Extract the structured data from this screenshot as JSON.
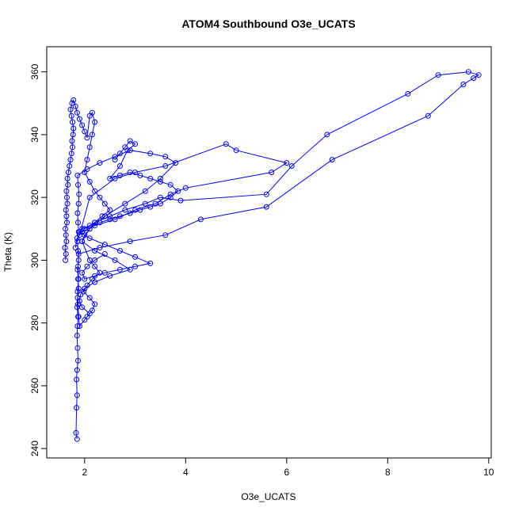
{
  "chart_data": {
    "type": "scatter",
    "title": "ATOM4 Southbound O3e_UCATS",
    "xlabel": "O3e_UCATS",
    "ylabel": "Theta (K)",
    "xlim": [
      1.25,
      10.05
    ],
    "ylim": [
      237,
      368
    ],
    "xticks": [
      2,
      4,
      6,
      8,
      10
    ],
    "yticks": [
      240,
      260,
      280,
      300,
      320,
      340,
      360
    ],
    "grid": false,
    "legend": "none",
    "color": "#0000ff",
    "marker": "open-circle",
    "connected": true,
    "series": [
      {
        "values": [
          [
            1.85,
            243
          ],
          [
            1.83,
            245
          ],
          [
            1.84,
            253
          ],
          [
            1.85,
            257
          ],
          [
            1.84,
            262
          ],
          [
            1.85,
            265
          ],
          [
            1.87,
            268
          ],
          [
            1.86,
            272
          ],
          [
            1.85,
            276
          ],
          [
            1.86,
            279
          ],
          [
            1.87,
            282
          ],
          [
            1.85,
            285
          ],
          [
            1.86,
            288
          ],
          [
            1.88,
            291
          ],
          [
            1.87,
            294
          ],
          [
            1.86,
            297
          ],
          [
            1.88,
            300
          ],
          [
            1.87,
            303
          ],
          [
            1.86,
            306
          ],
          [
            1.88,
            309
          ],
          [
            1.87,
            312
          ],
          [
            1.86,
            315
          ],
          [
            1.88,
            318
          ],
          [
            1.89,
            321
          ],
          [
            1.87,
            324
          ],
          [
            1.86,
            327
          ],
          [
            2.05,
            329
          ],
          [
            2.3,
            331
          ],
          [
            2.6,
            333
          ],
          [
            2.9,
            335
          ],
          [
            3.3,
            334
          ],
          [
            3.6,
            333
          ],
          [
            3.8,
            331
          ],
          [
            3.5,
            326
          ],
          [
            3.2,
            322
          ],
          [
            2.8,
            318
          ],
          [
            2.4,
            314
          ],
          [
            2.1,
            310
          ],
          [
            1.95,
            306
          ],
          [
            2.2,
            303
          ],
          [
            2.6,
            300
          ],
          [
            2.9,
            297
          ],
          [
            2.5,
            295
          ],
          [
            2.2,
            293
          ],
          [
            2.0,
            291
          ],
          [
            1.92,
            289
          ],
          [
            1.9,
            287
          ],
          [
            1.95,
            285
          ],
          [
            2.1,
            283
          ],
          [
            2.0,
            281
          ],
          [
            1.9,
            279
          ],
          [
            1.88,
            282
          ],
          [
            1.87,
            286
          ],
          [
            1.86,
            290
          ],
          [
            1.88,
            294
          ],
          [
            1.87,
            298
          ],
          [
            1.88,
            302
          ],
          [
            2.3,
            304
          ],
          [
            2.9,
            306
          ],
          [
            3.6,
            308
          ],
          [
            4.3,
            313
          ],
          [
            5.6,
            317
          ],
          [
            6.9,
            332
          ],
          [
            8.8,
            346
          ],
          [
            9.5,
            356
          ],
          [
            9.7,
            358
          ],
          [
            9.8,
            359
          ],
          [
            9.6,
            360
          ],
          [
            9.0,
            359
          ],
          [
            8.4,
            353
          ],
          [
            6.8,
            340
          ],
          [
            6.1,
            330
          ],
          [
            5.6,
            321
          ],
          [
            3.9,
            319
          ],
          [
            3.5,
            320
          ],
          [
            3.2,
            318
          ],
          [
            2.8,
            316
          ],
          [
            2.5,
            314
          ],
          [
            2.2,
            312
          ],
          [
            2.0,
            310
          ],
          [
            1.9,
            308
          ],
          [
            2.1,
            320
          ],
          [
            2.6,
            326
          ],
          [
            3.0,
            328
          ],
          [
            3.6,
            330
          ],
          [
            4.8,
            337
          ],
          [
            5.0,
            335
          ],
          [
            6.0,
            331
          ],
          [
            5.7,
            328
          ],
          [
            4.0,
            323
          ],
          [
            3.7,
            321
          ],
          [
            3.4,
            318
          ],
          [
            3.0,
            316
          ],
          [
            2.6,
            313
          ],
          [
            2.2,
            311
          ],
          [
            1.95,
            309
          ],
          [
            1.85,
            307
          ],
          [
            1.82,
            304
          ]
        ]
      },
      {
        "values": [
          [
            1.62,
            300
          ],
          [
            1.63,
            302
          ],
          [
            1.61,
            304
          ],
          [
            1.64,
            306
          ],
          [
            1.63,
            308
          ],
          [
            1.62,
            310
          ],
          [
            1.65,
            312
          ],
          [
            1.64,
            314
          ],
          [
            1.63,
            316
          ],
          [
            1.66,
            318
          ],
          [
            1.65,
            320
          ],
          [
            1.64,
            322
          ],
          [
            1.67,
            324
          ],
          [
            1.66,
            326
          ],
          [
            1.68,
            328
          ],
          [
            1.7,
            330
          ],
          [
            1.72,
            332
          ],
          [
            1.74,
            334
          ],
          [
            1.76,
            336
          ],
          [
            1.75,
            338
          ],
          [
            1.77,
            340
          ],
          [
            1.78,
            342
          ],
          [
            1.76,
            344
          ],
          [
            1.74,
            346
          ],
          [
            1.72,
            348
          ],
          [
            1.75,
            350
          ],
          [
            1.78,
            351
          ],
          [
            1.82,
            349
          ],
          [
            1.85,
            347
          ],
          [
            1.9,
            345
          ],
          [
            1.95,
            343
          ],
          [
            2.0,
            341
          ],
          [
            2.05,
            339
          ],
          [
            2.1,
            346
          ],
          [
            2.15,
            347
          ],
          [
            2.2,
            344
          ],
          [
            2.15,
            340
          ],
          [
            2.1,
            336
          ],
          [
            2.05,
            332
          ],
          [
            2.0,
            328
          ],
          [
            2.1,
            325
          ],
          [
            2.2,
            322
          ],
          [
            2.3,
            320
          ],
          [
            2.4,
            318
          ],
          [
            2.5,
            316
          ],
          [
            2.35,
            314
          ],
          [
            2.2,
            312
          ],
          [
            2.1,
            310
          ],
          [
            2.0,
            308
          ],
          [
            1.95,
            306
          ],
          [
            2.1,
            300
          ],
          [
            2.2,
            298
          ],
          [
            2.3,
            296
          ],
          [
            2.15,
            294
          ],
          [
            2.05,
            292
          ],
          [
            1.98,
            290
          ],
          [
            2.1,
            288
          ],
          [
            2.2,
            286
          ],
          [
            2.15,
            284
          ],
          [
            2.05,
            282
          ]
        ]
      },
      {
        "values": [
          [
            2.6,
            332
          ],
          [
            2.7,
            334
          ],
          [
            2.8,
            336
          ],
          [
            2.9,
            338
          ],
          [
            3.0,
            337
          ],
          [
            2.85,
            335
          ],
          [
            2.7,
            330
          ],
          [
            2.5,
            326
          ],
          [
            2.7,
            327
          ],
          [
            2.9,
            328
          ],
          [
            3.1,
            327
          ],
          [
            3.3,
            326
          ],
          [
            3.5,
            325
          ],
          [
            3.7,
            324
          ],
          [
            3.85,
            322
          ],
          [
            3.7,
            320
          ],
          [
            3.5,
            318
          ],
          [
            3.3,
            317
          ],
          [
            3.1,
            316
          ],
          [
            2.9,
            315
          ],
          [
            2.7,
            314
          ],
          [
            2.5,
            313
          ],
          [
            2.3,
            312
          ],
          [
            2.1,
            311
          ],
          [
            1.95,
            310
          ],
          [
            1.9,
            309
          ],
          [
            2.1,
            307
          ],
          [
            2.4,
            305
          ],
          [
            2.7,
            303
          ],
          [
            3.0,
            301
          ],
          [
            3.3,
            299
          ],
          [
            3.0,
            298
          ],
          [
            2.7,
            297
          ],
          [
            2.4,
            296
          ],
          [
            2.2,
            295
          ],
          [
            2.0,
            294
          ],
          [
            1.95,
            296
          ],
          [
            2.05,
            298
          ],
          [
            2.2,
            300
          ],
          [
            2.4,
            302
          ]
        ]
      }
    ]
  }
}
